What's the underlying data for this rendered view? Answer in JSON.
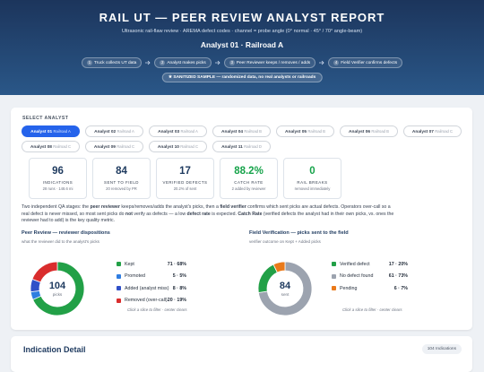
{
  "header": {
    "title": "RAIL UT — PEER REVIEW ANALYST REPORT",
    "subtitle": "Ultrasonic rail-flaw review · AREMA defect codes · channel = probe angle (0° normal · 45° / 70° angle-beam)",
    "analyst": "Analyst 01 · Railroad A",
    "steps": [
      {
        "num": "1",
        "text": "Truck collects UT data"
      },
      {
        "num": "2",
        "text": "Analyst makes picks"
      },
      {
        "num": "3",
        "text": "Peer Reviewer keeps / removes / adds"
      },
      {
        "num": "4",
        "text": "Field Verifier confirms defects"
      }
    ],
    "badge": "★ SANITIZED SAMPLE — randomized data, no real analysts or railroads"
  },
  "selector": {
    "label": "SELECT ANALYST",
    "active": 0,
    "analysts": [
      {
        "name": "Analyst 01",
        "railroad": "Railroad A"
      },
      {
        "name": "Analyst 02",
        "railroad": "Railroad A"
      },
      {
        "name": "Analyst 03",
        "railroad": "Railroad A"
      },
      {
        "name": "Analyst 04",
        "railroad": "Railroad B"
      },
      {
        "name": "Analyst 05",
        "railroad": "Railroad B"
      },
      {
        "name": "Analyst 06",
        "railroad": "Railroad B"
      },
      {
        "name": "Analyst 07",
        "railroad": "Railroad C"
      },
      {
        "name": "Analyst 08",
        "railroad": "Railroad C"
      },
      {
        "name": "Analyst 09",
        "railroad": "Railroad C"
      },
      {
        "name": "Analyst 10",
        "railroad": "Railroad C"
      },
      {
        "name": "Analyst 11",
        "railroad": "Railroad D"
      }
    ]
  },
  "kpis": [
    {
      "value": "96",
      "label": "INDICATIONS",
      "sub": "28 runs · 148.6 mi",
      "color": "#1e3a5f"
    },
    {
      "value": "84",
      "label": "SENT TO FIELD",
      "sub": "20 removed by PR",
      "color": "#1e3a5f"
    },
    {
      "value": "17",
      "label": "VERIFIED DEFECTS",
      "sub": "20.2% of sent",
      "color": "#1e3a5f"
    },
    {
      "value": "88.2%",
      "label": "CATCH RATE",
      "sub": "2 added by reviewer",
      "color": "#16a34a"
    },
    {
      "value": "0",
      "label": "RAIL BREAKS",
      "sub": "removed immediately",
      "color": "#16a34a"
    }
  ],
  "intro": [
    {
      "text": "Two independent QA stages: the ",
      "bold": false
    },
    {
      "text": "peer reviewer",
      "bold": true
    },
    {
      "text": " keeps/removes/adds the analyst's picks, then a ",
      "bold": false
    },
    {
      "text": "field verifier",
      "bold": true
    },
    {
      "text": " confirms which sent picks are actual defects. Operators over-call so a real defect is never missed, so most sent picks do ",
      "bold": false
    },
    {
      "text": "not",
      "bold": true
    },
    {
      "text": " verify as defects — a low ",
      "bold": false
    },
    {
      "text": "defect rate",
      "bold": true
    },
    {
      "text": " is expected. ",
      "bold": false
    },
    {
      "text": "Catch Rate",
      "bold": true
    },
    {
      "text": " (verified defects the analyst had in their own picks, vs. ones the reviewer had to add) is the key quality metric.",
      "bold": false
    }
  ],
  "panels": [
    {
      "title": "Peer Review — reviewer dispositions",
      "subtitle": "what the reviewer did to the analyst's picks",
      "total": 104,
      "total_label": "picks",
      "note": "Click a slice to filter · center clears",
      "items": [
        {
          "name": "Kept",
          "value": 71,
          "value_label": "71 · 68%",
          "color": "#22a047"
        },
        {
          "name": "Promoted",
          "value": 5,
          "value_label": "5 · 5%",
          "color": "#2f7de1"
        },
        {
          "name": "Added (analyst miss)",
          "value": 8,
          "value_label": "8 · 8%",
          "color": "#3050c8"
        },
        {
          "name": "Removed (over-call)",
          "value": 20,
          "value_label": "20 · 19%",
          "color": "#d92d2d"
        }
      ]
    },
    {
      "title": "Field Verification — picks sent to the field",
      "subtitle": "verifier outcome on Kept + Added picks",
      "total": 84,
      "total_label": "sent",
      "note": "Click a slice to filter · center clears",
      "items": [
        {
          "name": "Verified defect",
          "value": 17,
          "value_label": "17 · 20%",
          "color": "#22a047"
        },
        {
          "name": "No defect found",
          "value": 61,
          "value_label": "61 · 73%",
          "color": "#9ca3af"
        },
        {
          "name": "Pending",
          "value": 6,
          "value_label": "6 · 7%",
          "color": "#ea7a1a"
        }
      ]
    }
  ],
  "detail": {
    "title": "Indication Detail",
    "badge": "104 Indications"
  }
}
